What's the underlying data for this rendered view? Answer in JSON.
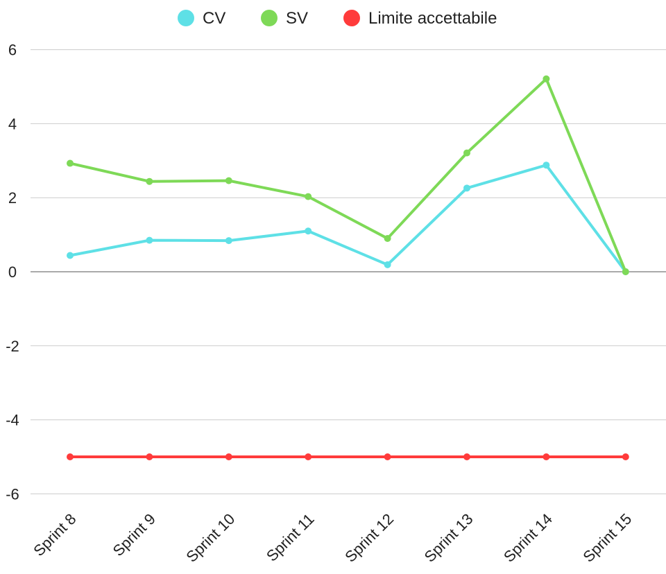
{
  "chart_data": {
    "type": "line",
    "categories": [
      "Sprint 8",
      "Sprint 9",
      "Sprint 10",
      "Sprint 11",
      "Sprint 12",
      "Sprint 13",
      "Sprint 14",
      "Sprint 15"
    ],
    "series": [
      {
        "name": "CV",
        "color": "#5ee0e6",
        "values": [
          0.44,
          0.85,
          0.84,
          1.1,
          0.19,
          2.26,
          2.88,
          0
        ]
      },
      {
        "name": "SV",
        "color": "#7ed957",
        "values": [
          2.93,
          2.44,
          2.46,
          2.03,
          0.9,
          3.21,
          5.21,
          0
        ]
      },
      {
        "name": "Limite accettabile",
        "color": "#ff3b3b",
        "values": [
          -5,
          -5,
          -5,
          -5,
          -5,
          -5,
          -5,
          -5
        ]
      }
    ],
    "y_ticks": [
      "6",
      "4",
      "2",
      "0",
      "-2",
      "-4",
      "-6"
    ],
    "ylim": [
      -6,
      6
    ],
    "grid": true,
    "legend_position": "top-center",
    "title": "",
    "xlabel": "",
    "ylabel": ""
  }
}
